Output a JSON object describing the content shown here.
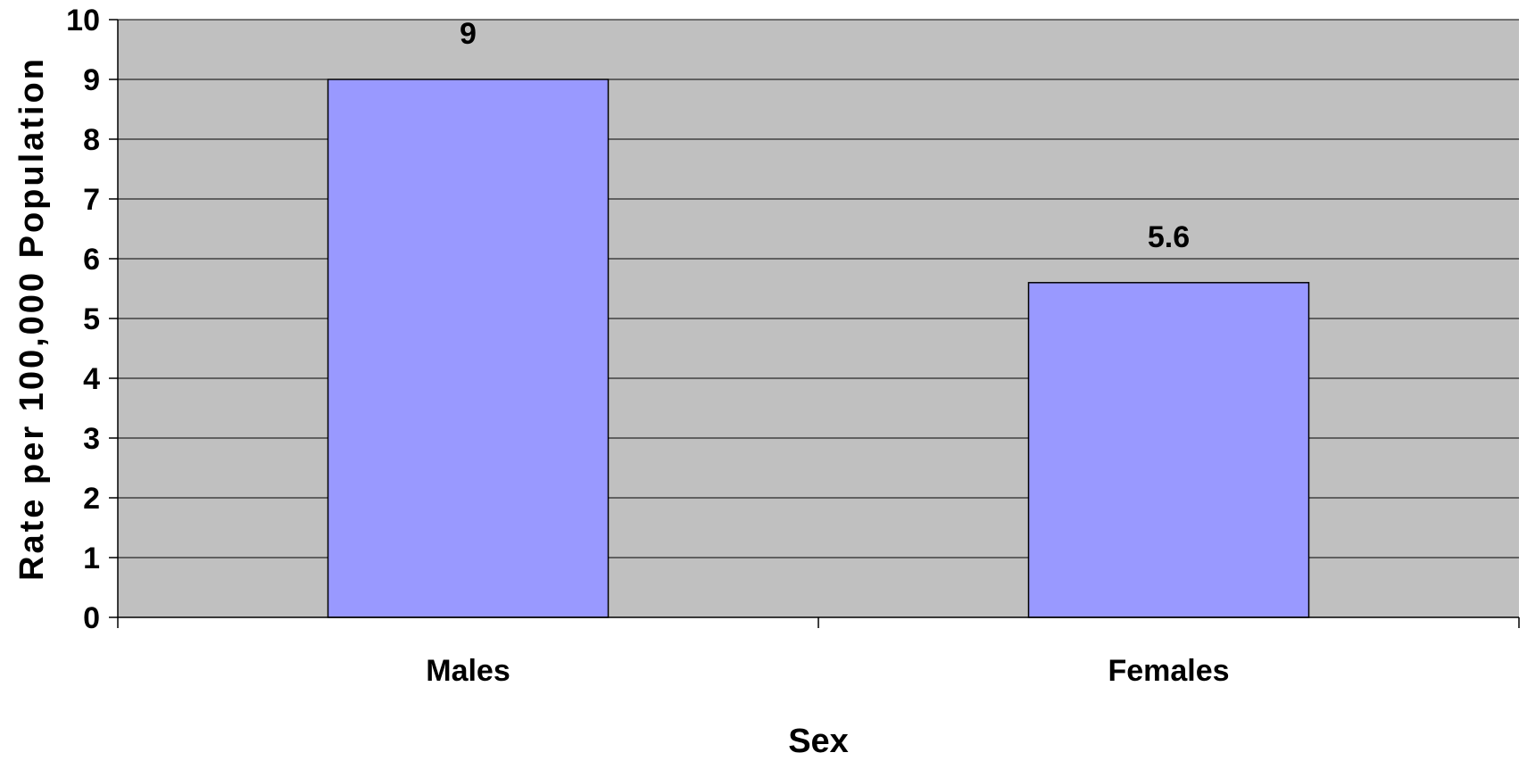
{
  "chart_data": {
    "type": "bar",
    "title": "",
    "categories": [
      "Males",
      "Females"
    ],
    "values": [
      9,
      5.6
    ],
    "data_labels": [
      "9",
      "5.6"
    ],
    "xlabel": "Sex",
    "ylabel": "Rate per 100,000 Population",
    "ylim": [
      0,
      10
    ],
    "yticks": [
      0,
      1,
      2,
      3,
      4,
      5,
      6,
      7,
      8,
      9,
      10
    ],
    "grid": true,
    "legend": "none"
  },
  "colors": {
    "plot_background": "#c0c0c0",
    "bar_fill": "#9999ff",
    "bar_stroke": "#000000",
    "gridline": "#000000",
    "text": "#000000"
  }
}
